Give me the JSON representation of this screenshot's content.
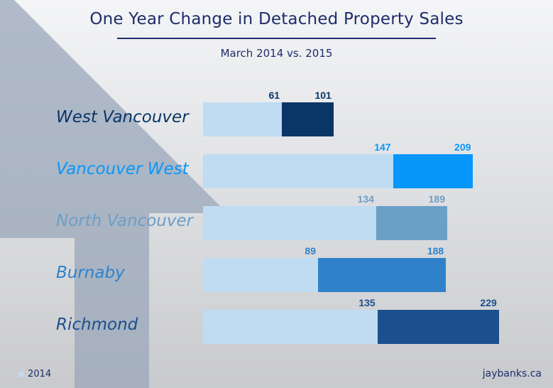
{
  "header": {
    "title": "One Year Change in Detached Property Sales",
    "subtitle": "March 2014 vs. 2015"
  },
  "colors": {
    "base_2014": "#bfdcf3",
    "title": "#1d2d6b"
  },
  "chart_data": {
    "type": "bar",
    "orientation": "horizontal",
    "title": "One Year Change in Detached Property Sales",
    "subtitle": "March 2014 vs. 2015",
    "categories": [
      "West Vancouver",
      "Vancouver West",
      "North Vancouver",
      "Burnaby",
      "Richmond"
    ],
    "series": [
      {
        "name": "2014",
        "values": [
          61,
          147,
          134,
          89,
          135
        ],
        "color": "#bfdcf3"
      },
      {
        "name": "2015",
        "values": [
          101,
          209,
          189,
          188,
          229
        ],
        "colors": [
          "#0a3567",
          "#0797fa",
          "#6c9fc6",
          "#2f82ca",
          "#1c4f8d"
        ]
      }
    ],
    "category_colors": [
      "#0a3567",
      "#0797fa",
      "#6c9fc6",
      "#2f82ca",
      "#1c4f8d"
    ],
    "xlim": [
      0,
      229
    ],
    "legend": {
      "entries": [
        "2014"
      ],
      "position": "bottom-left"
    },
    "source": "jaybanks.ca"
  }
}
